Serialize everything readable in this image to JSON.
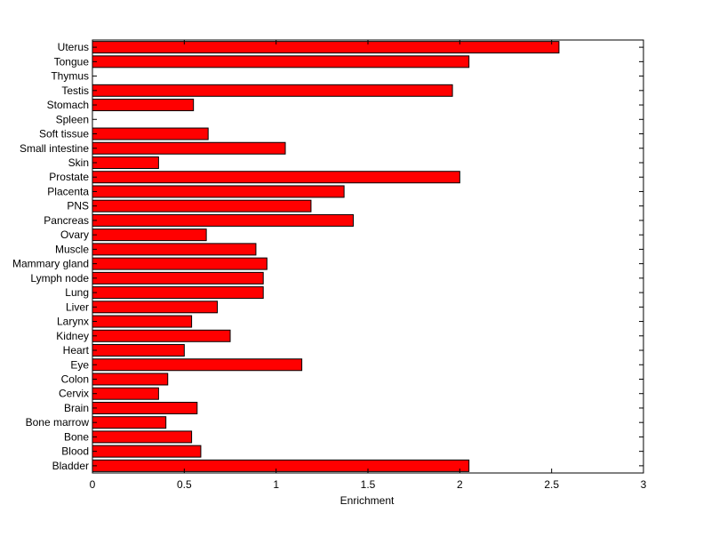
{
  "chart_data": {
    "type": "bar",
    "orientation": "horizontal",
    "title": "",
    "xlabel": "Enrichment",
    "ylabel": "",
    "xlim": [
      0,
      3
    ],
    "xticks": [
      "0",
      "0.5",
      "1",
      "1.5",
      "2",
      "2.5",
      "3"
    ],
    "grid": false,
    "bar_color": "#ff0000",
    "edge_color": "#000000",
    "categories": [
      "Bladder",
      "Blood",
      "Bone",
      "Bone marrow",
      "Brain",
      "Cervix",
      "Colon",
      "Eye",
      "Heart",
      "Kidney",
      "Larynx",
      "Liver",
      "Lung",
      "Lymph node",
      "Mammary gland",
      "Muscle",
      "Ovary",
      "Pancreas",
      "PNS",
      "Placenta",
      "Prostate",
      "Skin",
      "Small intestine",
      "Soft tissue",
      "Spleen",
      "Stomach",
      "Testis",
      "Thymus",
      "Tongue",
      "Uterus"
    ],
    "values": [
      2.05,
      0.59,
      0.54,
      0.4,
      0.57,
      0.36,
      0.41,
      1.14,
      0.5,
      0.75,
      0.54,
      0.68,
      0.93,
      0.93,
      0.95,
      0.89,
      0.62,
      1.42,
      1.19,
      1.37,
      2.0,
      0.36,
      1.05,
      0.63,
      0.0,
      0.55,
      1.96,
      0.0,
      2.05,
      2.54
    ]
  }
}
